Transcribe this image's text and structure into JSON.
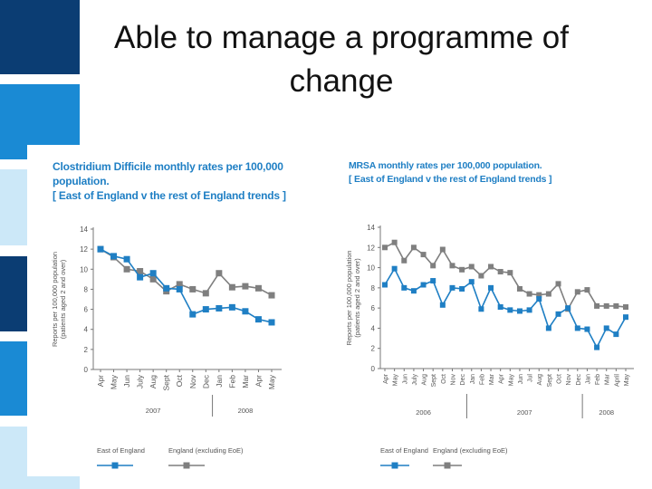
{
  "slide": {
    "title": "Able to manage a programme of change"
  },
  "colors": {
    "east_series": "#1f7fc4",
    "england_series": "#7f7f7f",
    "chart_title": "#1f7fc4",
    "stripe_dark": "#0b3d73",
    "stripe_mid": "#1a8ad4",
    "stripe_light": "#cce8f8"
  },
  "chart_data": [
    {
      "type": "line",
      "title_lines": [
        "Clostridium Difficile monthly rates per 100,000 population.",
        "[ East of England v the rest of England trends ]"
      ],
      "ylabel_lines": [
        "Reports per 100,000 population",
        "(patients aged 2 and over)"
      ],
      "xlabel": "",
      "ylim": [
        0,
        14
      ],
      "yticks": [
        0,
        2,
        4,
        6,
        8,
        10,
        12,
        14
      ],
      "x": [
        "Apr",
        "May",
        "Jun",
        "July",
        "Aug",
        "Sept",
        "Oct",
        "Nov",
        "Dec",
        "Jan",
        "Feb",
        "Mar",
        "Apr",
        "May"
      ],
      "years": [
        {
          "label": "2007",
          "start": 0,
          "end": 8
        },
        {
          "label": "2008",
          "start": 9,
          "end": 13
        }
      ],
      "grid": false,
      "legend_position": "bottom",
      "series": [
        {
          "name": "East of England",
          "values": [
            12.0,
            11.3,
            11.0,
            9.2,
            9.6,
            8.1,
            8.0,
            5.5,
            6.0,
            6.1,
            6.2,
            5.8,
            5.0,
            4.7
          ]
        },
        {
          "name": "England (excluding EoE)",
          "values": [
            12.0,
            11.2,
            10.0,
            9.8,
            9.0,
            7.8,
            8.5,
            8.0,
            7.6,
            9.6,
            8.2,
            8.3,
            8.1,
            7.4
          ]
        }
      ]
    },
    {
      "type": "line",
      "title_lines": [
        "MRSA monthly rates per 100,000 population.",
        "[ East of England v the rest of England trends ]"
      ],
      "ylabel_lines": [
        "Reports per 100,000 population",
        "(patients aged 2 and over)"
      ],
      "xlabel": "",
      "ylim": [
        0,
        14
      ],
      "yticks": [
        0,
        2,
        4,
        6,
        8,
        10,
        12,
        14
      ],
      "x": [
        "Apr",
        "May",
        "Jun",
        "July",
        "Aug",
        "Sept",
        "Oct",
        "Nov",
        "Dec",
        "Jan",
        "Feb",
        "Mar",
        "Apr",
        "May",
        "Jun",
        "Jul",
        "Aug",
        "Sept",
        "Oct",
        "Nov",
        "Dec",
        "Jan",
        "Feb",
        "Mar",
        "April",
        "May"
      ],
      "years": [
        {
          "label": "2006",
          "start": 0,
          "end": 8
        },
        {
          "label": "2007",
          "start": 9,
          "end": 20
        },
        {
          "label": "2008",
          "start": 21,
          "end": 25
        }
      ],
      "grid": false,
      "legend_position": "bottom",
      "series": [
        {
          "name": "East of England",
          "values": [
            8.3,
            9.9,
            8.0,
            7.7,
            8.3,
            8.7,
            6.3,
            8.0,
            7.9,
            8.6,
            5.9,
            8.0,
            6.1,
            5.8,
            5.7,
            5.8,
            6.9,
            4.0,
            5.4,
            6.0,
            4.0,
            3.9,
            2.1,
            4.0,
            3.4,
            5.1
          ]
        },
        {
          "name": "England (excluding EoE)",
          "values": [
            12.0,
            12.5,
            10.7,
            12.0,
            11.3,
            10.2,
            11.8,
            10.2,
            9.8,
            10.1,
            9.2,
            10.1,
            9.6,
            9.5,
            7.9,
            7.4,
            7.3,
            7.4,
            8.4,
            5.9,
            7.6,
            7.8,
            6.2,
            6.2,
            6.2,
            6.1
          ]
        }
      ]
    }
  ]
}
